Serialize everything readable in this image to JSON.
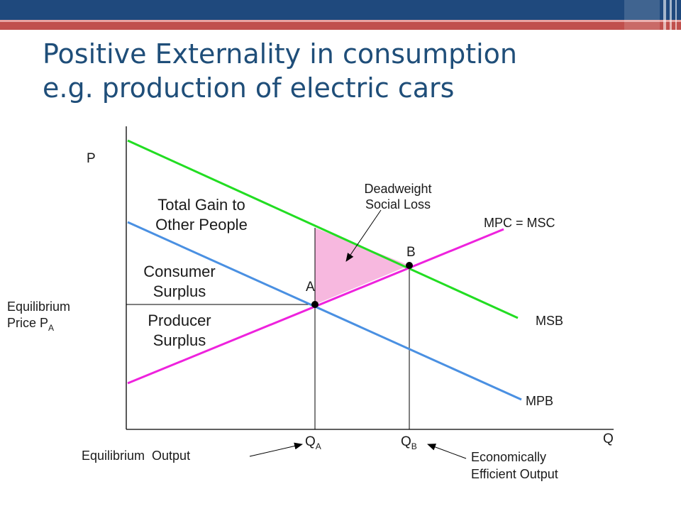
{
  "slide": {
    "title_line1": "Positive Externality in consumption",
    "title_line2": "e.g. production of electric cars"
  },
  "colors": {
    "title": "#1f4e79",
    "msb_line": "#22dd22",
    "mpb_line": "#4a90e2",
    "mpc_line": "#ee22dd",
    "deadweight_fill": "#f7b8df",
    "header_dark": "#1f497d",
    "header_red": "#c0504d"
  },
  "diagram": {
    "axis_p": "P",
    "axis_q": "Q",
    "curves": {
      "msb": "MSB",
      "mpb": "MPB",
      "mpc": "MPC = MSC"
    },
    "points": {
      "a": "A",
      "b": "B"
    },
    "areas": {
      "total_gain_line1": "Total Gain to",
      "total_gain_line2": "Other People",
      "consumer_line1": "Consumer",
      "consumer_line2": "Surplus",
      "producer_line1": "Producer",
      "producer_line2": "Surplus"
    },
    "deadweight_line1": "Deadweight",
    "deadweight_line2": "Social Loss",
    "eq_price_line1": "Equilibrium",
    "eq_price_line2_main": "Price P",
    "eq_price_line2_sub": "A",
    "qa_main": "Q",
    "qa_sub": "A",
    "qb_main": "Q",
    "qb_sub": "B",
    "equilibrium_output": "Equilibrium  Output",
    "efficient_line1": "Economically",
    "efficient_line2": "Efficient Output"
  }
}
